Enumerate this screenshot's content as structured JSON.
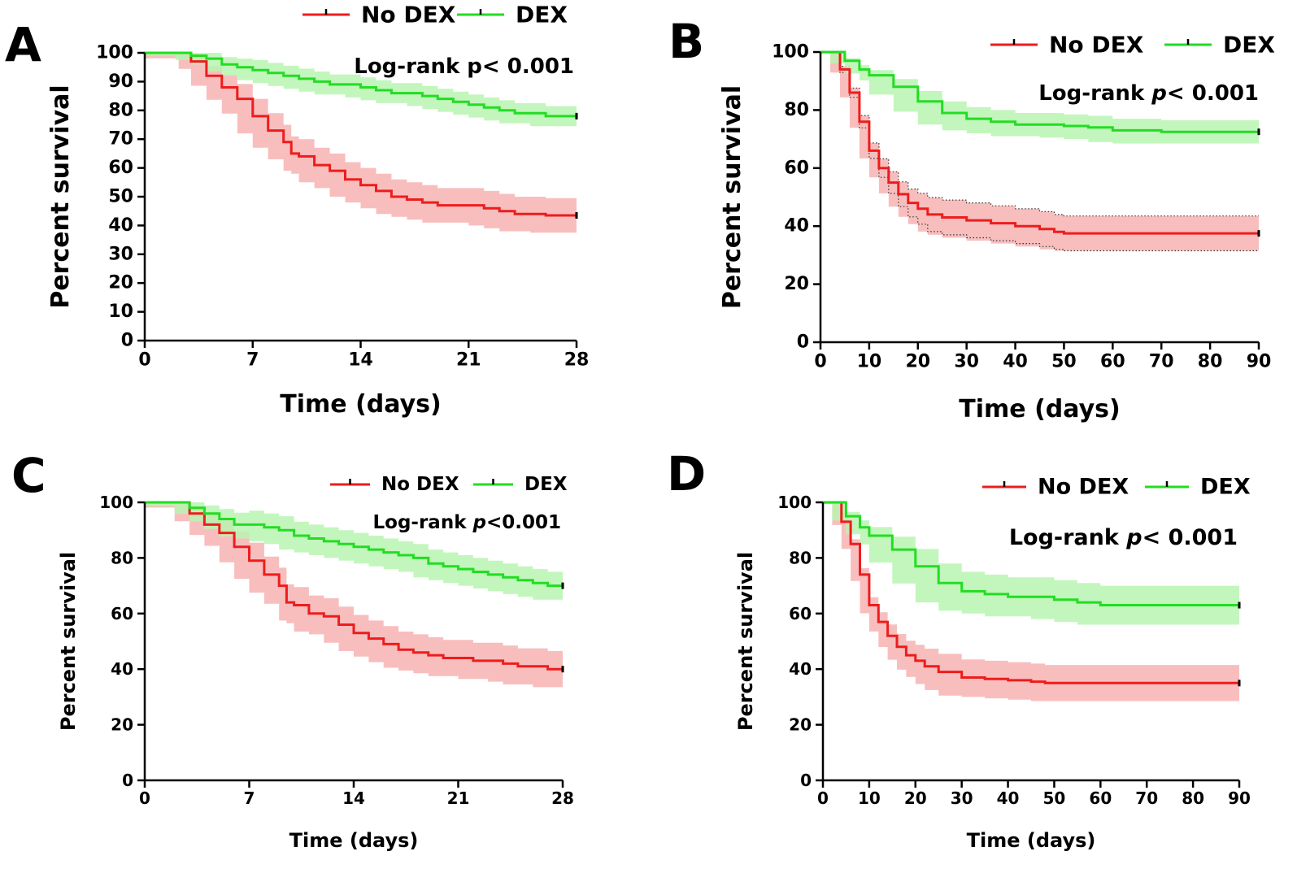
{
  "colors": {
    "no_dex": "#ee1c1c",
    "dex": "#22dd22",
    "no_dex_band": "#f7b3b3",
    "dex_band": "#b9f5b1",
    "axis": "#000000"
  },
  "chart_data": [
    {
      "panel_label": "A",
      "type": "line",
      "title": "",
      "xlabel": "Time (days)",
      "ylabel": "Percent survival",
      "xlim": [
        0,
        28
      ],
      "ylim": [
        0,
        100
      ],
      "xticks": [
        0,
        7,
        14,
        21,
        28
      ],
      "yticks": [
        0,
        10,
        20,
        30,
        40,
        50,
        60,
        70,
        80,
        90,
        100
      ],
      "annotation": {
        "prefix": "Log-rank p",
        "suffix": "< 0.001",
        "italic_p": false
      },
      "legend": {
        "position": "top",
        "entries": [
          "No DEX",
          "DEX"
        ]
      },
      "series": [
        {
          "name": "No DEX",
          "x": [
            0,
            2.2,
            3,
            4,
            5,
            6,
            7,
            8,
            9,
            9.5,
            10,
            11,
            12,
            13,
            14,
            15,
            16,
            17,
            18,
            19,
            20,
            21,
            22,
            23,
            24,
            25,
            26,
            27,
            28
          ],
          "y": [
            100,
            100,
            97,
            92,
            88,
            84,
            78,
            73,
            69,
            65,
            64,
            61,
            59,
            56,
            54,
            52,
            50,
            49,
            48,
            47,
            47,
            47,
            46,
            45,
            44,
            44,
            43.5,
            43.5,
            43.5
          ],
          "band": 6
        },
        {
          "name": "DEX",
          "x": [
            0,
            2,
            3,
            4,
            5,
            6,
            7,
            8,
            9,
            10,
            11,
            12,
            13,
            14,
            15,
            16,
            17,
            18,
            19,
            20,
            21,
            22,
            23,
            24,
            25,
            26,
            27,
            28
          ],
          "y": [
            100,
            100,
            99,
            98,
            96,
            95,
            94,
            93,
            92,
            91,
            90,
            89,
            89,
            88,
            87,
            86,
            86,
            85,
            84,
            83,
            82,
            81,
            80,
            79,
            79,
            78,
            78,
            78
          ],
          "band": 3.5
        }
      ]
    },
    {
      "panel_label": "B",
      "type": "line",
      "title": "",
      "xlabel": "Time (days)",
      "ylabel": "Percent survival",
      "xlim": [
        0,
        90
      ],
      "ylim": [
        0,
        100
      ],
      "xticks": [
        0,
        10,
        20,
        30,
        40,
        50,
        60,
        70,
        80,
        90
      ],
      "yticks": [
        0,
        20,
        40,
        60,
        80,
        100
      ],
      "annotation": {
        "prefix": "Log-rank ",
        "suffix": "< 0.001",
        "italic_p": true
      },
      "legend": {
        "position": "top-right",
        "entries": [
          "No DEX",
          "DEX"
        ]
      },
      "series": [
        {
          "name": "No DEX",
          "x": [
            0,
            2,
            4,
            6,
            8,
            10,
            12,
            14,
            16,
            18,
            20,
            22,
            25,
            30,
            35,
            40,
            45,
            48,
            50,
            60,
            70,
            80,
            90
          ],
          "y": [
            100,
            100,
            94,
            86,
            76,
            66,
            60,
            55,
            51,
            48,
            46,
            44,
            43,
            42,
            41,
            40,
            39,
            38,
            37.5,
            37.5,
            37.5,
            37.5,
            37.5
          ],
          "band": 6
        },
        {
          "name": "DEX",
          "x": [
            0,
            2,
            5,
            8,
            10,
            15,
            20,
            25,
            30,
            35,
            40,
            45,
            50,
            55,
            60,
            70,
            80,
            90
          ],
          "y": [
            100,
            100,
            97,
            94,
            92,
            88,
            83,
            79,
            77,
            76,
            75,
            75,
            74.5,
            74,
            73,
            72.5,
            72.5,
            72.5
          ],
          "band": 4
        }
      ]
    },
    {
      "panel_label": "C",
      "type": "line",
      "title": "",
      "xlabel": "Time (days)",
      "ylabel": "Percent survival",
      "xlim": [
        0,
        28
      ],
      "ylim": [
        0,
        100
      ],
      "xticks": [
        0,
        7,
        14,
        21,
        28
      ],
      "yticks": [
        0,
        20,
        40,
        60,
        80,
        100
      ],
      "annotation": {
        "prefix": "Log-rank ",
        "suffix": "<0.001",
        "italic_p": true
      },
      "legend": {
        "position": "top-right",
        "entries": [
          "No DEX",
          "DEX"
        ]
      },
      "series": [
        {
          "name": "No DEX",
          "x": [
            0,
            2,
            3,
            4,
            5,
            6,
            7,
            8,
            9,
            9.5,
            10,
            11,
            12,
            13,
            14,
            15,
            16,
            17,
            18,
            19,
            20,
            21,
            22,
            23,
            24,
            25,
            26,
            27,
            28
          ],
          "y": [
            100,
            100,
            96,
            92,
            89,
            84,
            79,
            74,
            70,
            64,
            63,
            60,
            59,
            56,
            53,
            51,
            49,
            47,
            46,
            45,
            44,
            44,
            43,
            43,
            42,
            41,
            41,
            40,
            40
          ],
          "band": 6.5
        },
        {
          "name": "DEX",
          "x": [
            0,
            2,
            3,
            4,
            5,
            6,
            7,
            8,
            9,
            10,
            11,
            12,
            13,
            14,
            15,
            16,
            17,
            18,
            19,
            20,
            21,
            22,
            23,
            24,
            25,
            26,
            27,
            28
          ],
          "y": [
            100,
            100,
            98,
            96,
            94,
            92,
            92,
            91,
            90,
            88,
            87,
            86,
            85,
            84,
            83,
            82,
            81,
            80,
            78,
            77,
            76,
            75,
            74,
            73,
            72,
            71,
            70,
            70
          ],
          "band": 5
        }
      ]
    },
    {
      "panel_label": "D",
      "type": "line",
      "title": "",
      "xlabel": "Time (days)",
      "ylabel": "Percent survival",
      "xlim": [
        0,
        90
      ],
      "ylim": [
        0,
        100
      ],
      "xticks": [
        0,
        10,
        20,
        30,
        40,
        50,
        60,
        70,
        80,
        90
      ],
      "yticks": [
        0,
        20,
        40,
        60,
        80,
        100
      ],
      "annotation": {
        "prefix": "Log-rank ",
        "suffix": "< 0.001",
        "italic_p": true
      },
      "legend": {
        "position": "top-right",
        "entries": [
          "No DEX",
          "DEX"
        ]
      },
      "series": [
        {
          "name": "No DEX",
          "x": [
            0,
            2,
            4,
            6,
            8,
            10,
            12,
            14,
            16,
            18,
            20,
            22,
            25,
            30,
            35,
            40,
            45,
            48,
            50,
            60,
            70,
            80,
            90
          ],
          "y": [
            100,
            100,
            93,
            85,
            74,
            63,
            57,
            52,
            48,
            45,
            43,
            41,
            39,
            37,
            36.5,
            36,
            35.5,
            35,
            35,
            35,
            35,
            35,
            35
          ],
          "band": 6.5
        },
        {
          "name": "DEX",
          "x": [
            0,
            2,
            5,
            8,
            10,
            15,
            20,
            25,
            30,
            35,
            40,
            45,
            50,
            55,
            60,
            70,
            80,
            90
          ],
          "y": [
            100,
            100,
            95,
            91,
            88,
            83,
            77,
            71,
            68,
            67,
            66,
            66,
            65,
            64,
            63,
            63,
            63,
            63
          ],
          "band": 7
        }
      ]
    }
  ]
}
